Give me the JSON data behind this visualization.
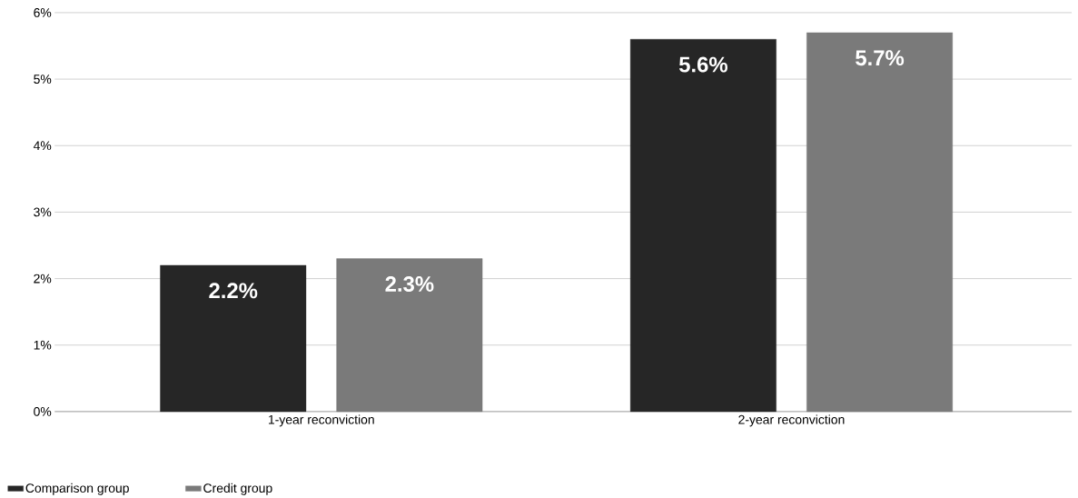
{
  "chart_data": {
    "type": "bar",
    "categories": [
      "1-year reconviction",
      "2-year reconviction"
    ],
    "series": [
      {
        "name": "Comparison group",
        "color": "#262626",
        "values": [
          2.2,
          5.6
        ],
        "value_labels": [
          "2.2%",
          "5.6%"
        ]
      },
      {
        "name": "Credit group",
        "color": "#7a7a7a",
        "values": [
          2.3,
          5.7
        ],
        "value_labels": [
          "2.3%",
          "5.7%"
        ]
      }
    ],
    "ylim": [
      0,
      6
    ],
    "yticks": [
      {
        "value": 0,
        "label": "0%"
      },
      {
        "value": 1,
        "label": "1%"
      },
      {
        "value": 2,
        "label": "2%"
      },
      {
        "value": 3,
        "label": "3%"
      },
      {
        "value": 4,
        "label": "4%"
      },
      {
        "value": 5,
        "label": "5%"
      },
      {
        "value": 6,
        "label": "6%"
      }
    ],
    "grid": "y",
    "legend": "bottom left"
  }
}
